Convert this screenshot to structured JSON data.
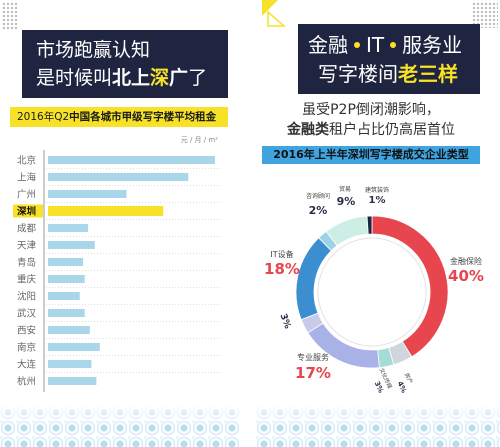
{
  "left_panel": {
    "headline": {
      "line1": "市场跑赢认知",
      "line2": {
        "a": "是时候叫",
        "b": "北上",
        "c": "深",
        "d": "广",
        "e": "了"
      }
    }
  },
  "right_panel": {
    "headline": {
      "line1": [
        "金融",
        "IT",
        "服务业"
      ],
      "line2": {
        "a": "写字楼间",
        "b": "老三样"
      }
    },
    "subtitle": {
      "line1": "虽受P2P倒闭潮影响，",
      "line2": {
        "a": "金融类",
        "b": "租户占比仍高居首位"
      }
    }
  },
  "colors": {
    "headline_box": "#1f2540",
    "highlight_yellow": "#f7e227",
    "percent_red": "#e8464e",
    "band_blue": "#3fa4e0",
    "bar_blue": "#a9d6e8"
  },
  "chart_data": [
    {
      "type": "bar",
      "orientation": "horizontal",
      "title": {
        "prefix": "2016年Q2",
        "main": "中国各城市甲级写字楼平均租金"
      },
      "unit": "元 / 月 / m²",
      "categories": [
        "北京",
        "上海",
        "广州",
        "深圳",
        "成都",
        "天津",
        "青岛",
        "重庆",
        "沈阳",
        "武汉",
        "西安",
        "南京",
        "大连",
        "杭州"
      ],
      "values": [
        1.0,
        0.84,
        0.47,
        0.69,
        0.24,
        0.28,
        0.21,
        0.22,
        0.19,
        0.22,
        0.25,
        0.31,
        0.26,
        0.29
      ],
      "highlight_index": 3,
      "grid": false
    },
    {
      "type": "pie",
      "variant": "donut",
      "title": "2016年上半年深圳写字楼成交企业类型",
      "slices": [
        {
          "name": "金融保险",
          "value": 40,
          "label": "40%",
          "color": "#e8464e"
        },
        {
          "name": "房产",
          "value": 4,
          "label": "4%",
          "color": "#cfd6de"
        },
        {
          "name": "文化传媒",
          "value": 3,
          "label": "3%",
          "color": "#a6dbd6"
        },
        {
          "name": "专业服务",
          "value": 17,
          "label": "17%",
          "color": "#a8b2e6"
        },
        {
          "value": 3,
          "label": "3%",
          "color": "#c8cbe8"
        },
        {
          "name": "IT设备",
          "value": 18,
          "label": "18%",
          "color": "#3b8fd1"
        },
        {
          "name": "咨询顾问",
          "value": 2,
          "label": "2%",
          "color": "#9bd2e8"
        },
        {
          "name": "贸易",
          "value": 9,
          "label": "9%",
          "color": "#cdeee4"
        },
        {
          "name": "建筑装饰",
          "value": 1,
          "label": "1%",
          "color": "#1f2540"
        }
      ]
    }
  ]
}
